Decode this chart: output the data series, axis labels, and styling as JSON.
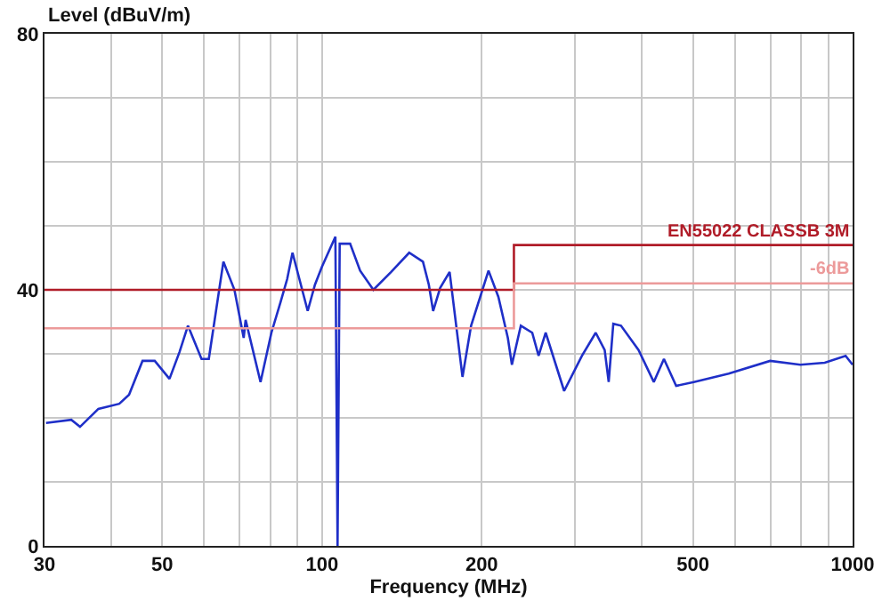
{
  "chart_data": {
    "type": "line",
    "ylabel": "Level (dBuV/m)",
    "xlabel": "Frequency (MHz)",
    "log": "x",
    "xlim": [
      30,
      1000
    ],
    "ylim": [
      0,
      80
    ],
    "xticks": [
      30,
      {
        "value": 40,
        "label": null
      },
      50,
      {
        "value": 60,
        "label": null
      },
      {
        "value": 70,
        "label": null
      },
      {
        "value": 80,
        "label": null
      },
      {
        "value": 90,
        "label": null
      },
      100,
      200,
      {
        "value": 300,
        "label": null
      },
      {
        "value": 400,
        "label": null
      },
      500,
      {
        "value": 600,
        "label": null
      },
      {
        "value": 700,
        "label": null
      },
      {
        "value": 800,
        "label": null
      },
      {
        "value": 900,
        "label": null
      },
      1000
    ],
    "yticks": [
      0,
      {
        "value": 10,
        "label": null
      },
      {
        "value": 20,
        "label": null
      },
      {
        "value": 30,
        "label": null
      },
      40,
      {
        "value": 50,
        "label": null
      },
      {
        "value": 60,
        "label": null
      },
      {
        "value": 70,
        "label": null
      },
      80
    ],
    "grid": true,
    "legend": false,
    "marker": "none",
    "line_style": "solid",
    "series": [
      {
        "color": "#1f2fc8",
        "x": [
          30.2,
          33.7,
          35,
          37.9,
          41.5,
          43.3,
          45.9,
          48.4,
          51.6,
          53.9,
          55.9,
          59.3,
          61.2,
          65.2,
          68.4,
          71.2,
          71.8,
          76.6,
          80.3,
          83.5,
          86,
          88,
          94,
          97,
          100,
          106,
          107,
          108,
          113,
          118,
          125,
          135,
          146,
          155,
          159,
          162,
          167,
          174,
          184,
          191,
          206,
          215,
          224,
          228,
          237,
          249,
          256,
          264,
          286,
          309,
          328,
          341,
          347,
          354,
          366,
          395,
          422,
          441,
          465,
          502,
          584,
          699,
          797,
          886,
          970,
          1000
        ],
        "values": [
          19.2,
          19.7,
          18.6,
          21.4,
          22.2,
          23.6,
          28.9,
          28.9,
          26.1,
          30.3,
          34.4,
          29.2,
          29.2,
          44.4,
          40,
          32.5,
          35.3,
          25.6,
          33.3,
          38,
          41.7,
          45.8,
          36.7,
          40.8,
          43.6,
          48.3,
          0,
          47.2,
          47.2,
          43,
          40,
          42.8,
          45.8,
          44.4,
          40.8,
          36.7,
          40.3,
          42.8,
          26.4,
          34.4,
          43,
          38.9,
          32.5,
          28.3,
          34.4,
          33.3,
          29.7,
          33.3,
          24.2,
          29.7,
          33.3,
          30.6,
          25.6,
          34.7,
          34.4,
          30.6,
          25.6,
          29.2,
          25,
          25.6,
          26.9,
          28.9,
          28.3,
          28.6,
          29.7,
          28.3
        ]
      },
      {
        "name": "EN55022 CLASSB 3M",
        "color": "#b01c28",
        "x": [
          30,
          230,
          230,
          1000
        ],
        "values": [
          40,
          40,
          47,
          47
        ]
      },
      {
        "name": "-6dB",
        "color": "#ec9a9a",
        "x": [
          30,
          230,
          230,
          1000
        ],
        "values": [
          34,
          34,
          41,
          41
        ]
      }
    ]
  }
}
